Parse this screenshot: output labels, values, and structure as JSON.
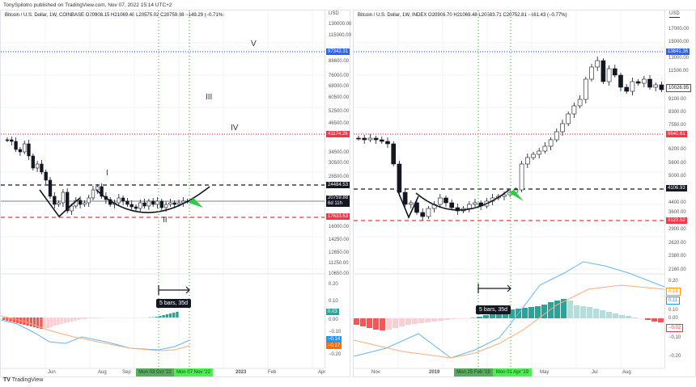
{
  "publisher": "TonySpilotro published on TradingView.com, Nov 07, 2022 15:14 UTC+2",
  "footer": "TradingView",
  "left": {
    "legend": "Bitcoin / U.S. Dollar, 1W, COINBASE  O20908.15  H21069.48  L20575.02  C20759.88  −149.29 (−0.71%)",
    "currency": "USD",
    "price_ticks": [
      "130000.00",
      "115000.00",
      "88600.00",
      "76000.00",
      "68000.00",
      "60500.00",
      "52500.00",
      "46500.00",
      "34500.00",
      "30500.00",
      "26500.00",
      "16000.00",
      "14250.00",
      "12650.00",
      "11250.00",
      "10650.00"
    ],
    "tags": {
      "blue": "97342.31",
      "red_top": "41174.26",
      "black": "24484.53",
      "price": "20759.88",
      "countdown": "6d 11h",
      "red_bottom": "17633.53"
    },
    "waves": [
      "V",
      "III",
      "IV",
      "I",
      "II"
    ],
    "measure": "5 bars, 35d",
    "macd_ticks": [
      "0.20",
      "0.10",
      "0.00",
      "−0.10",
      "−0.20"
    ],
    "macd_tags": {
      "hist": "0.03",
      "macd": "−0.14",
      "signal": "−0.17"
    },
    "time_ticks": [
      "Jun",
      "Aug",
      "Sep",
      "2023",
      "Feb",
      "Apr"
    ],
    "date_marks": [
      "Mon 03 Oct '22",
      "Mon 07 Nov '22"
    ]
  },
  "right": {
    "legend": "Bitcoin / U.S. Dollar, 1W, INDEX  O20906.70  H21069.48  L20583.71  C20752.81  −161.43 (−0.77%)",
    "currency": "USD",
    "price_ticks": [
      "17000.00",
      "15000.00",
      "13000.00",
      "11500.00",
      "9100.00",
      "8300.00",
      "7550.00",
      "6200.00",
      "5600.00",
      "5000.00",
      "4400.00",
      "3600.00",
      "2900.00",
      "2620.00",
      "2380.00",
      "2160.00"
    ],
    "tags": {
      "blue": "13841.36",
      "price": "10026.95",
      "red_top": "6640.61",
      "black": "4106.93",
      "red_bottom": "3123.52"
    },
    "measure": "5 bars, 35d",
    "macd_ticks": [
      "0.20",
      "0.10",
      "0.00",
      "−0.10",
      "−0.20"
    ],
    "macd_tags": {
      "signal": "0.14",
      "macd": "0.11",
      "hist": "−0.02"
    },
    "time_ticks": [
      "Nov",
      "2019",
      "May",
      "Jul",
      "Aug"
    ],
    "date_marks": [
      "Mon 25 Feb '19",
      "Mon 01 Apr '19"
    ]
  },
  "colors": {
    "up": "#ffffff",
    "down": "#131722",
    "teal": "#26a69a",
    "red": "#f23645",
    "blue": "#2962ff",
    "green": "#4cd137"
  }
}
